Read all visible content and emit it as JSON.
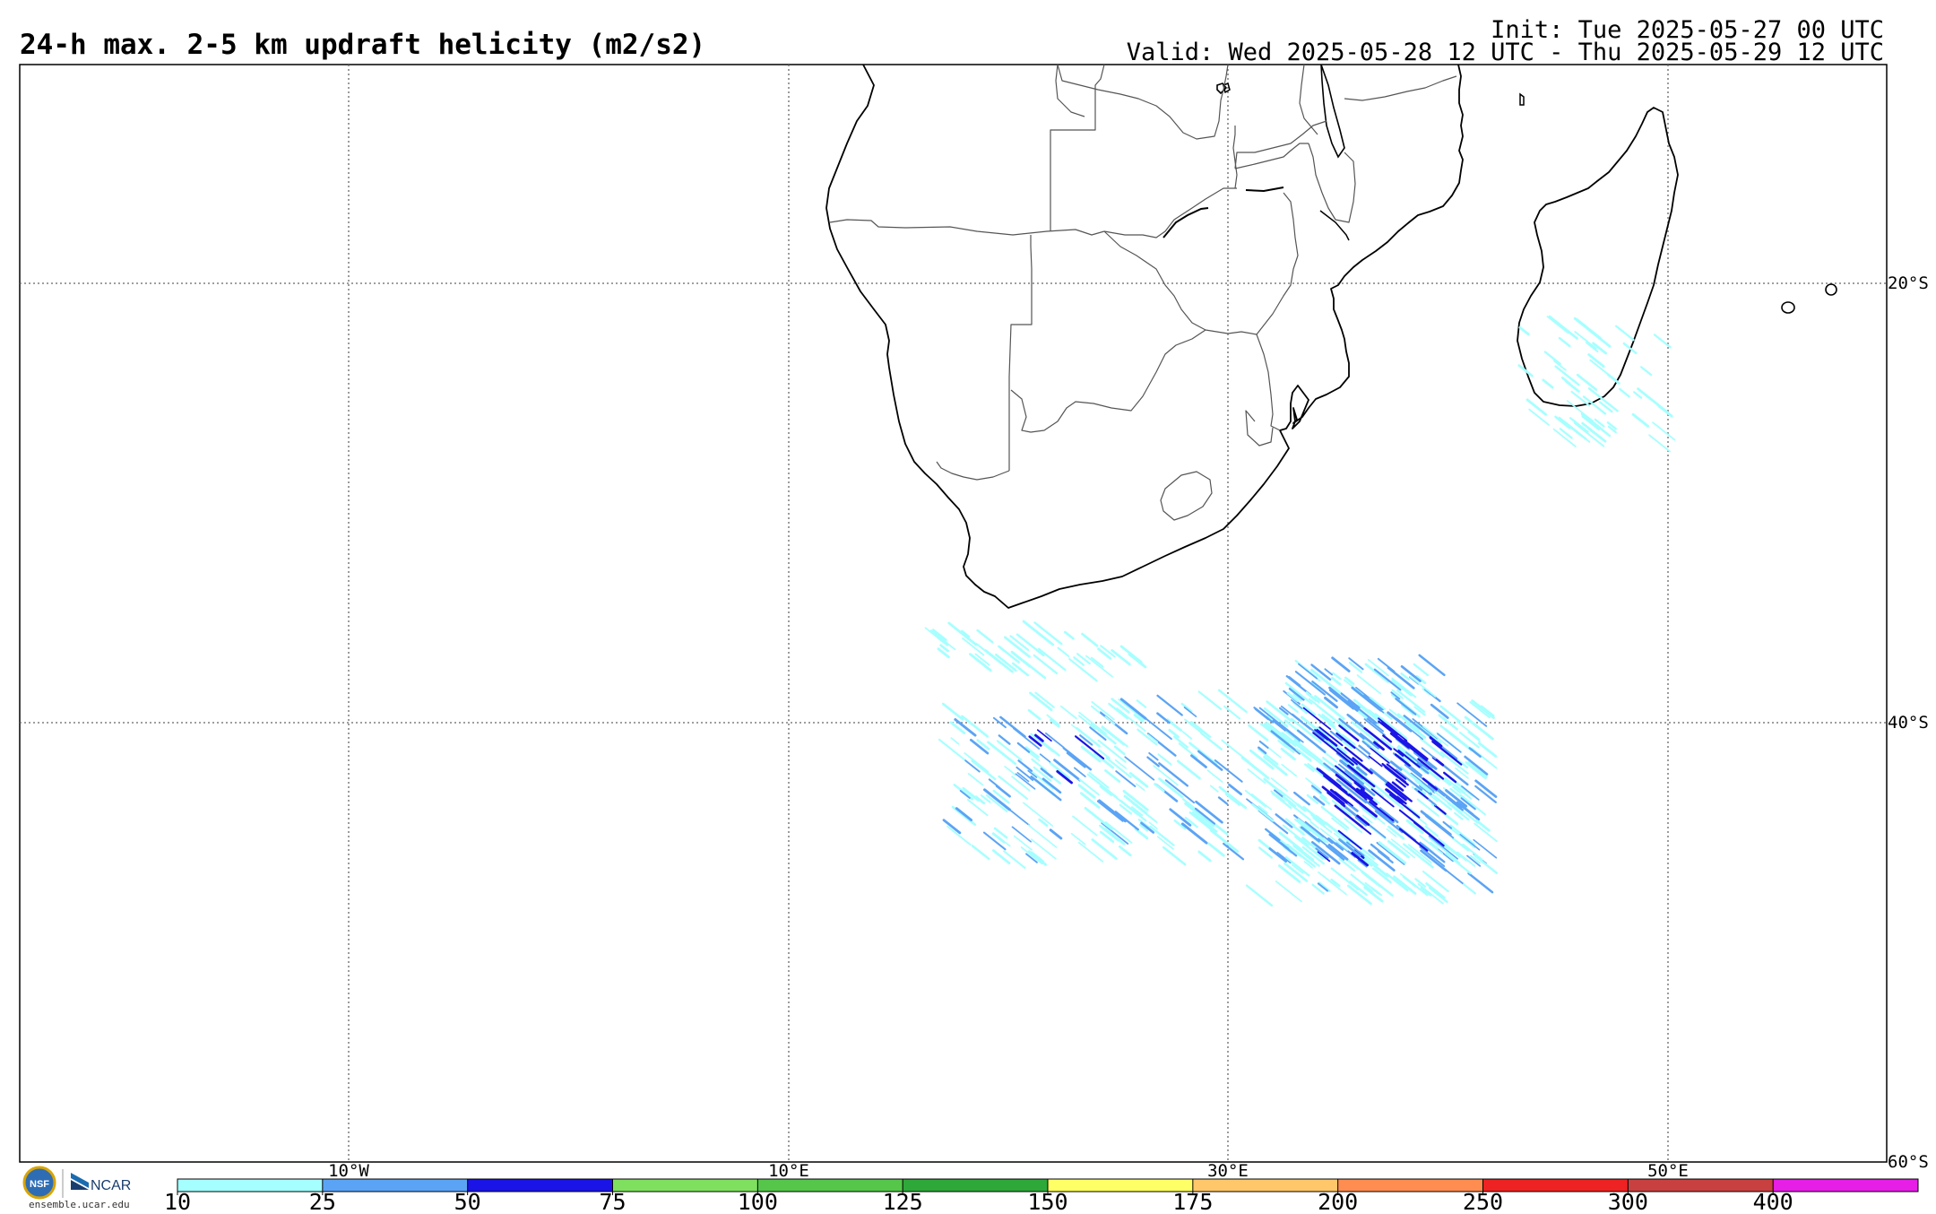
{
  "header": {
    "title": "24-h max. 2-5 km updraft helicity (m2/s2)",
    "init": "Init: Tue 2025-05-27 00 UTC",
    "valid": "Valid: Wed 2025-05-28 12 UTC - Thu 2025-05-29 12 UTC"
  },
  "map": {
    "lat_labels": [
      "20°S",
      "40°S",
      "60°S"
    ],
    "lon_labels": [
      "10°W",
      "10°E",
      "30°E",
      "50°E"
    ],
    "region": "Southern Africa",
    "coastline_color": "#000000",
    "border_color": "#555555"
  },
  "colorbar": {
    "ticks": [
      "10",
      "25",
      "50",
      "75",
      "100",
      "125",
      "150",
      "175",
      "200",
      "250",
      "300",
      "400"
    ],
    "colors": [
      "#a6ffff",
      "#5ba4f5",
      "#1a14e6",
      "#7fe060",
      "#55c64a",
      "#2fa83a",
      "#ffff66",
      "#ffc76a",
      "#ff8c50",
      "#ee2222",
      "#c84040",
      "#e61ee6"
    ]
  },
  "footer": {
    "logo_nsf": "NSF",
    "logo_ncar": "NCAR",
    "url": "ensemble.ucar.edu"
  }
}
